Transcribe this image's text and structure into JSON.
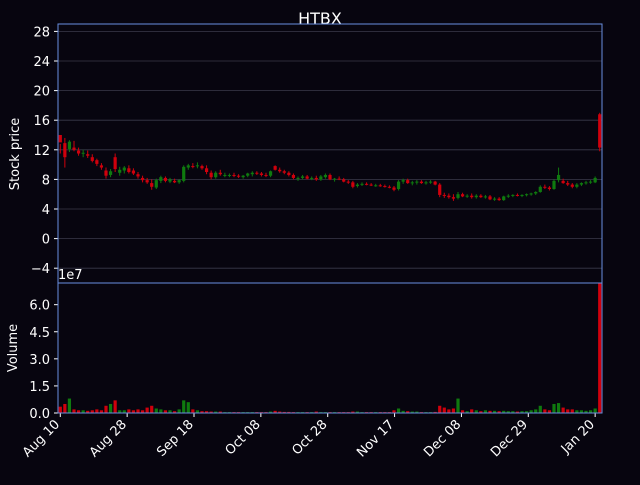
{
  "chart_data": {
    "type": "candlestick",
    "title": "HTBX",
    "xlabel": "",
    "background": "#07050f",
    "frame_color": "#6a90e0",
    "grid_color": "#3a3a4a",
    "up_color": "#0f7a0f",
    "down_color": "#d0000c",
    "x_tick_labels": [
      "Aug 10",
      "Aug 28",
      "Sep 18",
      "Oct 08",
      "Oct 28",
      "Nov 17",
      "Dec 08",
      "Dec 29",
      "Jan 20"
    ],
    "price_panel": {
      "ylabel": "Stock price",
      "ylim": [
        -6,
        29
      ],
      "yticks": [
        -4,
        0,
        4,
        8,
        12,
        16,
        20,
        24,
        28
      ],
      "grid": true
    },
    "volume_panel": {
      "ylabel": "Volume",
      "scale_label": "1e7",
      "ylim": [
        0,
        7.2
      ],
      "yticks": [
        "0.0",
        "1.5",
        "3.0",
        "4.5",
        "6.0"
      ],
      "ytick_values": [
        0,
        1.5,
        3.0,
        4.5,
        6.0
      ],
      "unit": "1e7 shares"
    },
    "series": [
      [
        14.0,
        12.8,
        11.5,
        13.0,
        0.35
      ],
      [
        12.9,
        13.6,
        9.6,
        11.0,
        0.5
      ],
      [
        12.1,
        13.3,
        11.7,
        13.1,
        0.8
      ],
      [
        12.3,
        13.2,
        11.8,
        12.0,
        0.2
      ],
      [
        11.9,
        12.3,
        11.2,
        11.5,
        0.15
      ],
      [
        11.5,
        12.0,
        11.0,
        11.6,
        0.15
      ],
      [
        11.4,
        11.9,
        10.9,
        11.2,
        0.12
      ],
      [
        11.0,
        11.4,
        10.3,
        10.5,
        0.15
      ],
      [
        10.6,
        10.8,
        9.8,
        10.1,
        0.2
      ],
      [
        9.9,
        10.2,
        9.3,
        9.6,
        0.15
      ],
      [
        9.2,
        9.6,
        8.1,
        8.5,
        0.4
      ],
      [
        8.6,
        9.4,
        8.3,
        9.1,
        0.5
      ],
      [
        11.0,
        11.5,
        9.0,
        9.4,
        0.7
      ],
      [
        8.9,
        9.7,
        8.5,
        9.3,
        0.15
      ],
      [
        9.2,
        9.8,
        8.8,
        9.6,
        0.15
      ],
      [
        9.5,
        9.9,
        8.8,
        9.0,
        0.2
      ],
      [
        9.2,
        9.5,
        8.6,
        8.8,
        0.15
      ],
      [
        8.7,
        9.0,
        8.1,
        8.4,
        0.2
      ],
      [
        8.2,
        8.5,
        7.6,
        7.9,
        0.15
      ],
      [
        7.9,
        8.2,
        7.4,
        7.6,
        0.3
      ],
      [
        7.5,
        8.0,
        6.6,
        7.0,
        0.4
      ],
      [
        6.9,
        8.1,
        6.7,
        7.9,
        0.25
      ],
      [
        7.8,
        8.5,
        7.5,
        8.3,
        0.2
      ],
      [
        8.2,
        8.4,
        7.6,
        7.8,
        0.15
      ],
      [
        7.7,
        8.2,
        7.5,
        8.0,
        0.15
      ],
      [
        7.8,
        8.1,
        7.5,
        7.6,
        0.1
      ],
      [
        7.6,
        8.0,
        7.4,
        7.9,
        0.2
      ],
      [
        7.8,
        9.9,
        7.6,
        9.7,
        0.7
      ],
      [
        9.6,
        10.1,
        9.3,
        9.9,
        0.6
      ],
      [
        9.8,
        10.2,
        9.5,
        9.7,
        0.2
      ],
      [
        9.8,
        10.3,
        9.5,
        9.9,
        0.15
      ],
      [
        9.8,
        10.0,
        9.3,
        9.5,
        0.1
      ],
      [
        9.5,
        9.9,
        8.7,
        9.0,
        0.1
      ],
      [
        8.9,
        9.2,
        8.0,
        8.3,
        0.08
      ],
      [
        8.3,
        9.1,
        8.1,
        8.9,
        0.08
      ],
      [
        8.9,
        9.3,
        8.5,
        8.7,
        0.08
      ],
      [
        8.6,
        8.9,
        8.3,
        8.6,
        0.05
      ],
      [
        8.5,
        8.8,
        8.3,
        8.6,
        0.05
      ],
      [
        8.6,
        8.9,
        8.3,
        8.5,
        0.05
      ],
      [
        8.5,
        8.7,
        8.2,
        8.4,
        0.05
      ],
      [
        8.3,
        8.6,
        8.1,
        8.5,
        0.05
      ],
      [
        8.5,
        8.9,
        8.3,
        8.8,
        0.05
      ],
      [
        8.7,
        9.1,
        8.4,
        8.9,
        0.05
      ],
      [
        8.9,
        9.1,
        8.6,
        8.8,
        0.05
      ],
      [
        8.8,
        9.0,
        8.4,
        8.6,
        0.05
      ],
      [
        8.6,
        8.9,
        8.3,
        8.5,
        0.05
      ],
      [
        8.5,
        9.2,
        8.3,
        9.1,
        0.08
      ],
      [
        9.8,
        9.9,
        9.2,
        9.3,
        0.12
      ],
      [
        9.3,
        9.6,
        8.9,
        9.1,
        0.08
      ],
      [
        9.1,
        9.3,
        8.7,
        8.9,
        0.06
      ],
      [
        8.9,
        9.1,
        8.4,
        8.6,
        0.06
      ],
      [
        8.6,
        8.8,
        8.0,
        8.2,
        0.05
      ],
      [
        8.1,
        8.4,
        7.8,
        8.2,
        0.05
      ],
      [
        8.2,
        8.6,
        8.0,
        8.4,
        0.05
      ],
      [
        8.4,
        8.6,
        8.0,
        8.1,
        0.05
      ],
      [
        8.1,
        8.4,
        7.9,
        8.2,
        0.05
      ],
      [
        8.2,
        8.5,
        7.8,
        8.0,
        0.08
      ],
      [
        8.0,
        8.6,
        7.8,
        8.4,
        0.05
      ],
      [
        8.3,
        8.8,
        8.1,
        8.6,
        0.05
      ],
      [
        8.6,
        8.8,
        7.9,
        8.0,
        0.05
      ],
      [
        8.0,
        8.2,
        7.7,
        8.1,
        0.05
      ],
      [
        8.1,
        8.4,
        7.9,
        8.0,
        0.05
      ],
      [
        8.0,
        8.2,
        7.6,
        7.7,
        0.05
      ],
      [
        7.7,
        7.9,
        7.4,
        7.6,
        0.05
      ],
      [
        7.6,
        7.8,
        6.8,
        7.0,
        0.08
      ],
      [
        7.1,
        7.5,
        6.9,
        7.3,
        0.08
      ],
      [
        7.3,
        7.6,
        7.1,
        7.4,
        0.05
      ],
      [
        7.4,
        7.6,
        7.2,
        7.3,
        0.05
      ],
      [
        7.3,
        7.5,
        7.1,
        7.2,
        0.05
      ],
      [
        7.2,
        7.4,
        7.0,
        7.2,
        0.05
      ],
      [
        7.2,
        7.4,
        7.0,
        7.1,
        0.05
      ],
      [
        7.1,
        7.3,
        6.9,
        7.0,
        0.05
      ],
      [
        7.0,
        7.2,
        6.8,
        6.9,
        0.05
      ],
      [
        6.9,
        7.1,
        6.4,
        6.6,
        0.15
      ],
      [
        6.7,
        7.9,
        6.5,
        7.7,
        0.25
      ],
      [
        7.7,
        8.1,
        7.4,
        7.9,
        0.12
      ],
      [
        7.9,
        8.1,
        7.4,
        7.5,
        0.1
      ],
      [
        7.5,
        7.8,
        7.2,
        7.6,
        0.08
      ],
      [
        7.6,
        7.9,
        7.3,
        7.7,
        0.08
      ],
      [
        7.7,
        7.9,
        7.4,
        7.5,
        0.05
      ],
      [
        7.5,
        7.8,
        7.3,
        7.6,
        0.05
      ],
      [
        7.6,
        7.9,
        7.4,
        7.7,
        0.05
      ],
      [
        7.7,
        7.8,
        7.2,
        7.3,
        0.06
      ],
      [
        7.3,
        7.5,
        5.6,
        5.9,
        0.4
      ],
      [
        5.9,
        6.2,
        5.5,
        5.8,
        0.3
      ],
      [
        5.8,
        6.1,
        5.4,
        5.6,
        0.2
      ],
      [
        5.6,
        6.0,
        5.1,
        5.4,
        0.25
      ],
      [
        5.5,
        6.3,
        5.3,
        6.0,
        0.8
      ],
      [
        6.0,
        6.2,
        5.6,
        5.7,
        0.15
      ],
      [
        5.7,
        6.0,
        5.5,
        5.8,
        0.1
      ],
      [
        5.8,
        6.1,
        5.4,
        5.6,
        0.2
      ],
      [
        5.6,
        6.0,
        5.4,
        5.8,
        0.15
      ],
      [
        5.8,
        6.0,
        5.5,
        5.6,
        0.1
      ],
      [
        5.6,
        5.9,
        5.4,
        5.7,
        0.15
      ],
      [
        5.7,
        5.9,
        5.2,
        5.3,
        0.12
      ],
      [
        5.3,
        5.6,
        5.1,
        5.4,
        0.12
      ],
      [
        5.4,
        5.6,
        5.1,
        5.2,
        0.1
      ],
      [
        5.2,
        5.8,
        5.1,
        5.7,
        0.12
      ],
      [
        5.7,
        6.0,
        5.5,
        5.8,
        0.1
      ],
      [
        5.8,
        6.0,
        5.6,
        5.9,
        0.1
      ],
      [
        5.9,
        6.1,
        5.7,
        5.8,
        0.08
      ],
      [
        5.8,
        6.0,
        5.6,
        5.9,
        0.1
      ],
      [
        5.9,
        6.1,
        5.7,
        6.0,
        0.1
      ],
      [
        6.0,
        6.2,
        5.8,
        6.1,
        0.15
      ],
      [
        6.1,
        6.4,
        5.9,
        6.3,
        0.2
      ],
      [
        6.3,
        7.2,
        6.2,
        7.0,
        0.4
      ],
      [
        7.0,
        7.3,
        6.7,
        6.9,
        0.2
      ],
      [
        6.9,
        7.1,
        6.5,
        6.7,
        0.15
      ],
      [
        6.7,
        8.0,
        6.6,
        7.8,
        0.5
      ],
      [
        7.9,
        9.6,
        7.6,
        8.6,
        0.55
      ],
      [
        7.8,
        8.1,
        7.4,
        7.5,
        0.3
      ],
      [
        7.5,
        7.8,
        7.1,
        7.3,
        0.2
      ],
      [
        7.3,
        7.5,
        6.8,
        7.0,
        0.2
      ],
      [
        7.0,
        7.5,
        6.8,
        7.3,
        0.15
      ],
      [
        7.3,
        7.6,
        7.1,
        7.5,
        0.15
      ],
      [
        7.5,
        7.8,
        7.3,
        7.6,
        0.12
      ],
      [
        7.6,
        7.9,
        7.4,
        7.7,
        0.15
      ],
      [
        7.6,
        8.4,
        7.5,
        8.2,
        0.25
      ],
      [
        16.8,
        17.0,
        11.8,
        12.3,
        7.2
      ]
    ]
  }
}
